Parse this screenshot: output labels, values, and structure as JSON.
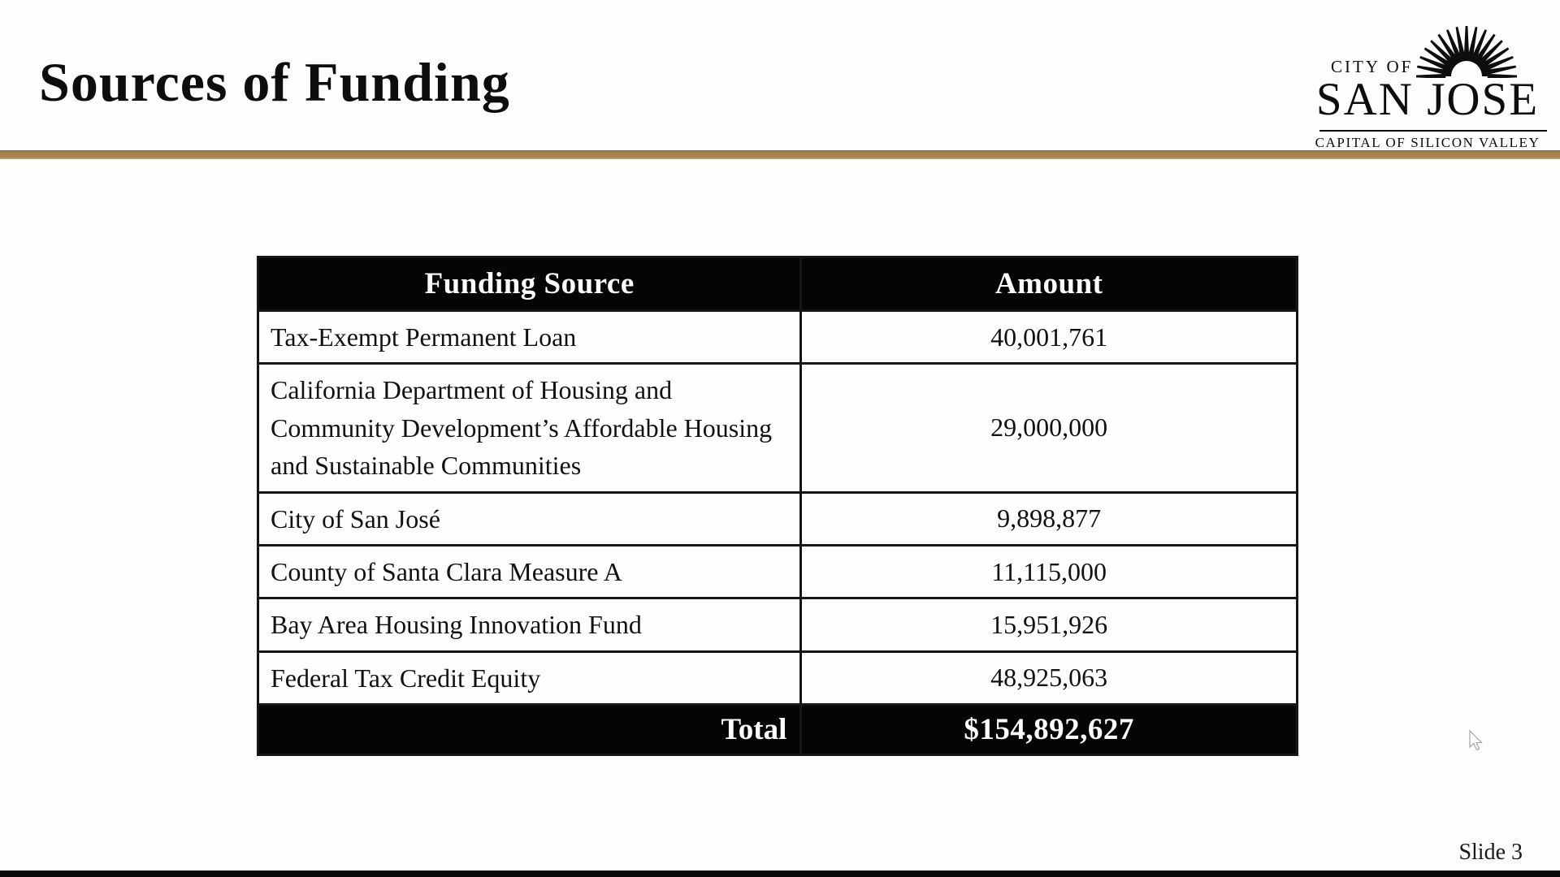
{
  "slide": {
    "title": "Sources of Funding",
    "slide_number": "Slide 3"
  },
  "logo": {
    "city_of": "CITY OF",
    "san_jose": "SAN JOSE",
    "tagline": "CAPITAL OF SILICON VALLEY"
  },
  "table": {
    "headers": {
      "source": "Funding Source",
      "amount": "Amount"
    },
    "rows": [
      {
        "source": "Tax-Exempt Permanent Loan",
        "amount": "40,001,761"
      },
      {
        "source": "California Department of Housing and Community Development’s Affordable Housing and Sustainable Communities",
        "amount": "29,000,000"
      },
      {
        "source": "City of San José",
        "amount": "9,898,877"
      },
      {
        "source": "County of Santa Clara Measure A",
        "amount": "11,115,000"
      },
      {
        "source": "Bay Area Housing Innovation Fund",
        "amount": "15,951,926"
      },
      {
        "source": "Federal Tax Credit Equity",
        "amount": "48,925,063"
      }
    ],
    "total_label": "Total",
    "total_amount": "$154,892,627"
  },
  "colors": {
    "divider_gold": "#a8854f",
    "table_header_bg": "#050505",
    "table_header_text": "#ffffff",
    "slide_background": "#fdfdfb"
  }
}
